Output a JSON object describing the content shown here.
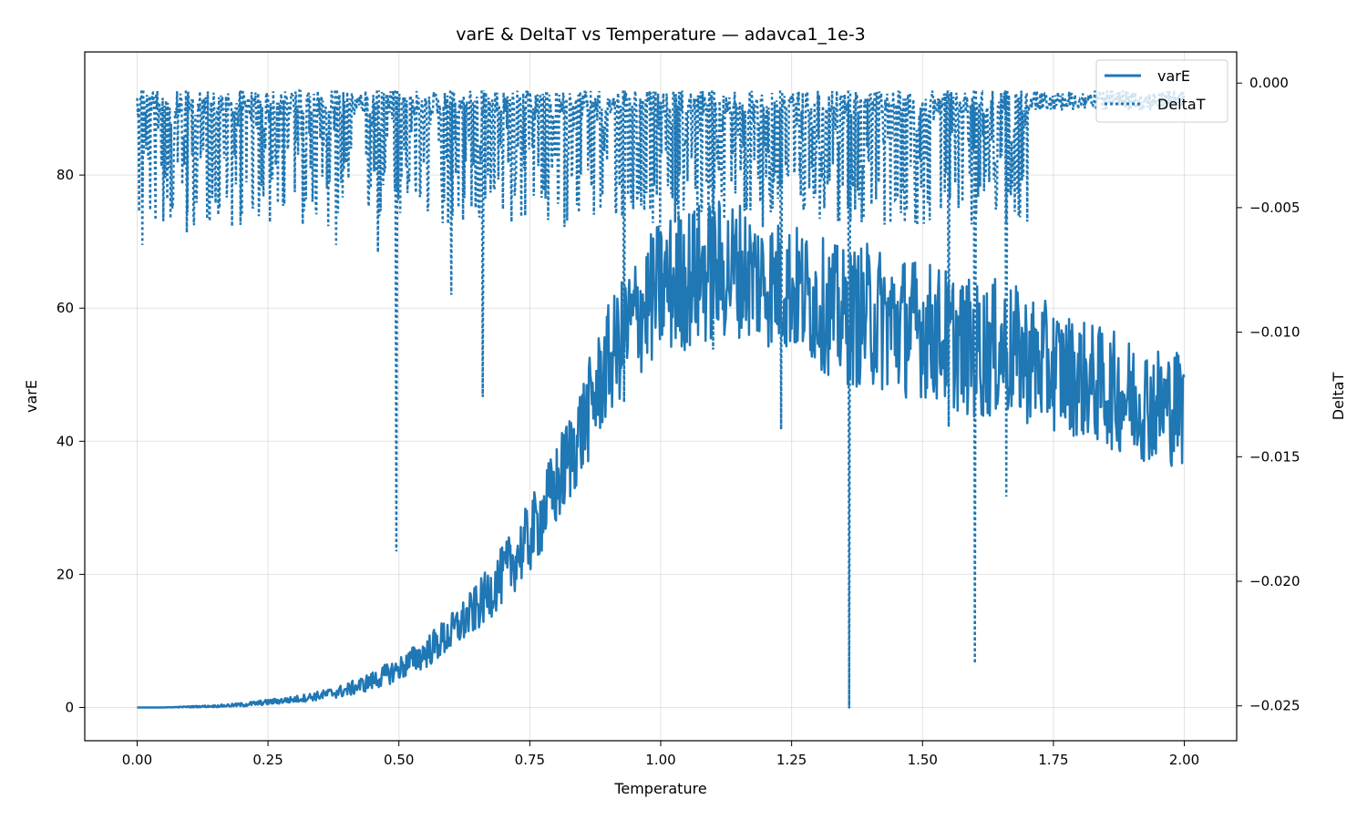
{
  "chart_data": {
    "type": "line",
    "title": "varE & DeltaT vs Temperature — adavca1_1e-3",
    "xlabel": "Temperature",
    "ylabel_left": "varE",
    "ylabel_right": "DeltaT",
    "xlim": [
      -0.1,
      2.1
    ],
    "ylim_left": [
      -5,
      98.5
    ],
    "ylim_right": [
      -0.0264,
      0.00125
    ],
    "x_ticks": [
      "0.00",
      "0.25",
      "0.50",
      "0.75",
      "1.00",
      "1.25",
      "1.50",
      "1.75",
      "2.00"
    ],
    "x_tick_values": [
      0,
      0.25,
      0.5,
      0.75,
      1.0,
      1.25,
      1.5,
      1.75,
      2.0
    ],
    "y_left_ticks": [
      "0",
      "20",
      "40",
      "60",
      "80"
    ],
    "y_left_tick_values": [
      0,
      20,
      40,
      60,
      80
    ],
    "y_right_ticks": [
      "0.000",
      "−0.005",
      "−0.010",
      "−0.015",
      "−0.020",
      "−0.025"
    ],
    "y_right_tick_values": [
      0,
      -0.005,
      -0.01,
      -0.015,
      -0.02,
      -0.025
    ],
    "grid": true,
    "legend_position": "top-right",
    "color": "#1f77b4",
    "series": [
      {
        "name": "varE",
        "axis": "left",
        "style": "solid",
        "x": [
          0.0,
          0.05,
          0.1,
          0.15,
          0.2,
          0.25,
          0.3,
          0.35,
          0.4,
          0.45,
          0.5,
          0.55,
          0.6,
          0.65,
          0.7,
          0.75,
          0.8,
          0.85,
          0.9,
          0.95,
          1.0,
          1.05,
          1.1,
          1.15,
          1.2,
          1.25,
          1.3,
          1.35,
          1.4,
          1.45,
          1.5,
          1.55,
          1.6,
          1.65,
          1.7,
          1.75,
          1.8,
          1.85,
          1.9,
          1.95,
          2.0
        ],
        "values": [
          0,
          0,
          0.1,
          0.2,
          0.4,
          0.8,
          1.2,
          1.8,
          2.6,
          4.0,
          5.8,
          8.2,
          11.2,
          15.0,
          20.0,
          25.5,
          33.0,
          42.0,
          52.0,
          58.5,
          63.0,
          64.5,
          65.5,
          66.0,
          64.0,
          63.0,
          61.0,
          58.5,
          59.0,
          57.5,
          57.0,
          55.5,
          53.5,
          54.0,
          52.5,
          51.0,
          49.5,
          48.0,
          46.5,
          45.5,
          45.0
        ],
        "noise": [
          0,
          0,
          0.1,
          0.15,
          0.3,
          0.4,
          0.5,
          0.7,
          1.0,
          1.4,
          1.8,
          2.4,
          3.0,
          3.6,
          4.5,
          5.5,
          6.5,
          7.5,
          8.5,
          9.5,
          10.5,
          11.0,
          11.0,
          10.5,
          10.0,
          10.0,
          10.0,
          10.5,
          11.0,
          11.0,
          10.5,
          10.5,
          10.5,
          10.5,
          10.0,
          9.5,
          9.0,
          9.0,
          9.0,
          9.0,
          9.0
        ]
      },
      {
        "name": "DeltaT",
        "axis": "right",
        "style": "dotted",
        "baseline": -0.0003,
        "range_x": [
          0.0,
          2.0
        ],
        "typical_min": -0.0055,
        "spikes": [
          {
            "x": 0.01,
            "value": -0.0065
          },
          {
            "x": 0.095,
            "value": -0.006
          },
          {
            "x": 0.2,
            "value": -0.0053
          },
          {
            "x": 0.38,
            "value": -0.0065
          },
          {
            "x": 0.46,
            "value": -0.0068
          },
          {
            "x": 0.495,
            "value": -0.0188
          },
          {
            "x": 0.6,
            "value": -0.0085
          },
          {
            "x": 0.66,
            "value": -0.0126
          },
          {
            "x": 0.93,
            "value": -0.0128
          },
          {
            "x": 1.1,
            "value": -0.0107
          },
          {
            "x": 1.23,
            "value": -0.0139
          },
          {
            "x": 1.36,
            "value": -0.0251
          },
          {
            "x": 1.55,
            "value": -0.0138
          },
          {
            "x": 1.6,
            "value": -0.0233
          },
          {
            "x": 1.66,
            "value": -0.0166
          }
        ]
      }
    ]
  }
}
